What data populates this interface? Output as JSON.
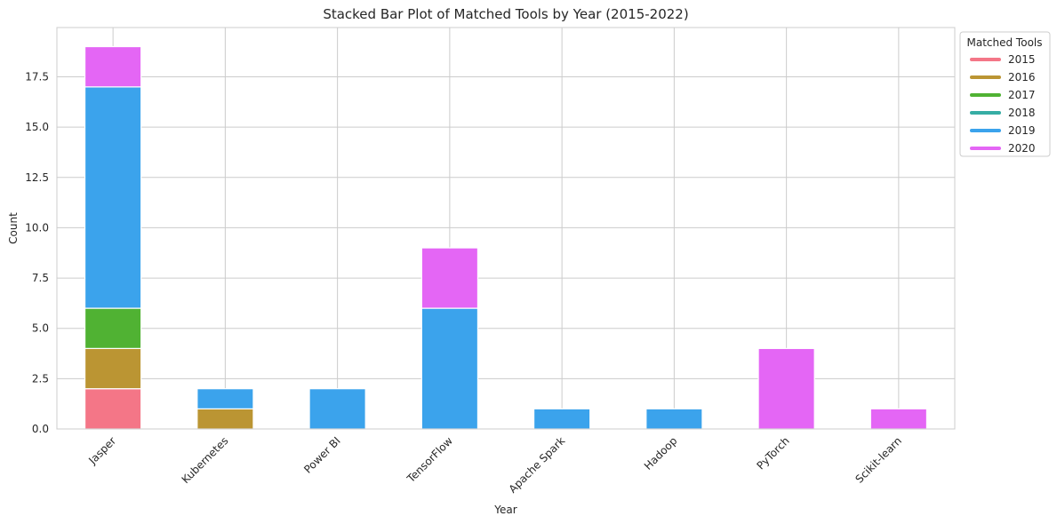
{
  "chart_data": {
    "type": "bar",
    "stacked": true,
    "title": "Stacked Bar Plot of Matched Tools by Year (2015-2022)",
    "xlabel": "Year",
    "ylabel": "Count",
    "categories": [
      "Jasper",
      "Kubernetes",
      "Power BI",
      "TensorFlow",
      "Apache Spark",
      "Hadoop",
      "PyTorch",
      "Scikit-learn"
    ],
    "ylim": [
      0,
      19.95
    ],
    "yticks": [
      0.0,
      2.5,
      5.0,
      7.5,
      10.0,
      12.5,
      15.0,
      17.5
    ],
    "ytick_labels": [
      "0.0",
      "2.5",
      "5.0",
      "7.5",
      "10.0",
      "12.5",
      "15.0",
      "17.5"
    ],
    "grid": true,
    "legend_title": "Matched Tools",
    "legend_position": "upper-right-outside",
    "series": [
      {
        "name": "2015",
        "color": "#f47687",
        "values": [
          2,
          0,
          0,
          0,
          0,
          0,
          0,
          0
        ]
      },
      {
        "name": "2016",
        "color": "#bb9533",
        "values": [
          2,
          1,
          0,
          0,
          0,
          0,
          0,
          0
        ]
      },
      {
        "name": "2017",
        "color": "#50b233",
        "values": [
          2,
          0,
          0,
          0,
          0,
          0,
          0,
          0
        ]
      },
      {
        "name": "2018",
        "color": "#36ada4",
        "values": [
          0,
          0,
          0,
          0,
          0,
          0,
          0,
          0
        ]
      },
      {
        "name": "2019",
        "color": "#3ba3ec",
        "values": [
          11,
          1,
          2,
          6,
          1,
          1,
          0,
          0
        ]
      },
      {
        "name": "2020",
        "color": "#e466f5",
        "values": [
          2,
          0,
          0,
          3,
          0,
          0,
          4,
          1
        ]
      }
    ]
  }
}
